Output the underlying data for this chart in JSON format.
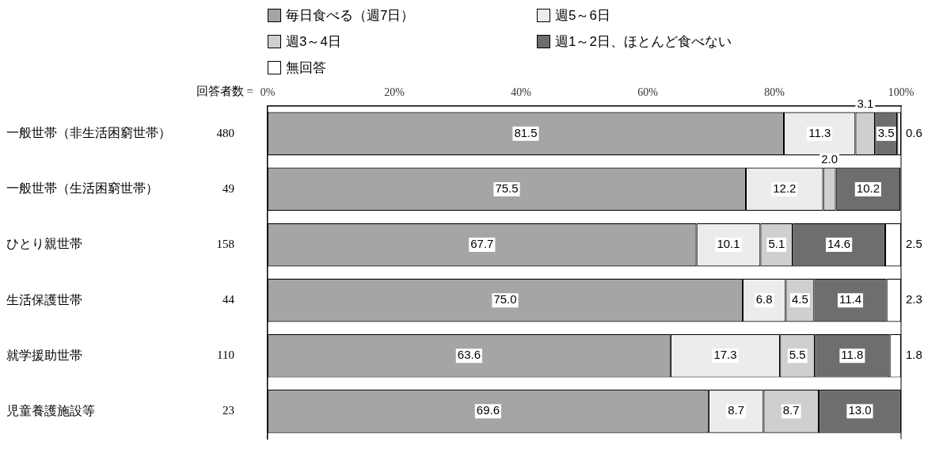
{
  "chart_data": {
    "type": "bar",
    "orientation": "horizontal",
    "stacked": true,
    "grid": false,
    "legend": "top",
    "categories": [
      "一般世帯（非生活困窮世帯）",
      "一般世帯（生活困窮世帯）",
      "ひとり親世帯",
      "生活保護世帯",
      "就学援助世帯",
      "児童養護施設等"
    ],
    "series": [
      {
        "name": "毎日食べる（週7日）",
        "color": "#a5a5a5",
        "values": [
          81.5,
          75.5,
          67.7,
          75.0,
          63.6,
          69.6
        ],
        "value_labels": [
          "81.5",
          "75.5",
          "67.7",
          "75.0",
          "63.6",
          "69.6"
        ]
      },
      {
        "name": "週5～6日",
        "color": "#ececec",
        "values": [
          11.3,
          12.2,
          10.1,
          6.8,
          17.3,
          8.7
        ],
        "value_labels": [
          "11.3",
          "12.2",
          "10.1",
          "6.8",
          "17.3",
          "8.7"
        ]
      },
      {
        "name": "週3～4日",
        "color": "#cfcfcf",
        "values": [
          3.1,
          2.0,
          5.1,
          4.5,
          5.5,
          8.7
        ],
        "value_labels": [
          "3.1",
          "2.0",
          "5.1",
          "4.5",
          "5.5",
          "8.7"
        ]
      },
      {
        "name": "週1～2日、ほとんど食べない",
        "color": "#6e6e6e",
        "values": [
          3.5,
          10.2,
          14.6,
          11.4,
          11.8,
          13.0
        ],
        "value_labels": [
          "3.5",
          "10.2",
          "14.6",
          "11.4",
          "11.8",
          "13.0"
        ]
      },
      {
        "name": "無回答",
        "color": "#ffffff",
        "values": [
          0.6,
          null,
          2.5,
          2.3,
          1.8,
          null
        ],
        "value_labels": [
          "0.6",
          null,
          "2.5",
          "2.3",
          "1.8",
          null
        ]
      }
    ],
    "xlim": [
      0,
      100
    ],
    "xticks": [
      {
        "value": 0,
        "label": "0%"
      },
      {
        "value": 20,
        "label": "20%"
      },
      {
        "value": 40,
        "label": "40%"
      },
      {
        "value": 60,
        "label": "60%"
      },
      {
        "value": 80,
        "label": "80%"
      },
      {
        "value": 100,
        "label": "100%"
      }
    ],
    "annotations": [
      "回答者数 =",
      "480",
      "49",
      "158",
      "44",
      "110",
      "23"
    ]
  }
}
